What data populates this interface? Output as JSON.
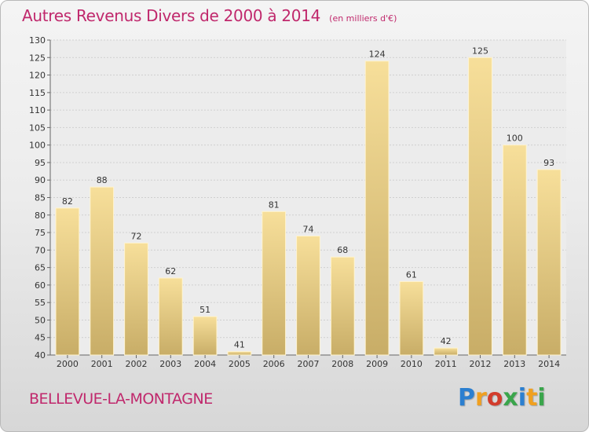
{
  "header": {
    "title": "Autres Revenus Divers de 2000 à 2014",
    "unit": "(en milliers d'€)"
  },
  "footer": {
    "town": "BELLEVUE-LA-MONTAGNE",
    "logo_text": "Proxiti",
    "logo_colors": [
      "#2b7fd0",
      "#f0a020",
      "#d23c2c",
      "#3aa54b",
      "#2b7fd0",
      "#f0a020",
      "#3aa54b"
    ]
  },
  "colors": {
    "bar_light": "#f7df9a",
    "bar_dark": "#c8ad67",
    "title": "#c0286c",
    "grid": "#cfcfcf"
  },
  "chart_data": {
    "type": "bar",
    "title": "Autres Revenus Divers de 2000 à 2014",
    "xlabel": "",
    "ylabel": "",
    "categories": [
      "2000",
      "2001",
      "2002",
      "2003",
      "2004",
      "2005",
      "2006",
      "2007",
      "2008",
      "2009",
      "2010",
      "2011",
      "2012",
      "2013",
      "2014"
    ],
    "values": [
      82,
      88,
      72,
      62,
      51,
      41,
      81,
      74,
      68,
      124,
      61,
      42,
      125,
      100,
      93
    ],
    "ylim": [
      40,
      130
    ],
    "ytick_step": 5,
    "grid": true,
    "data_labels": true
  }
}
